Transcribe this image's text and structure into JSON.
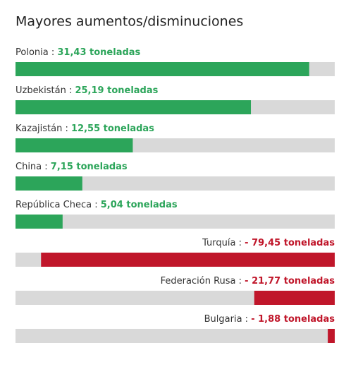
{
  "chart_data": {
    "type": "diverging-bar",
    "title": "Mayores aumentos/disminuciones",
    "categories": [
      "Polonia",
      "Uzbekistán",
      "Kazajistán",
      "China",
      "República Checa",
      "Turquía",
      "Federación Rusa",
      "Bulgaria"
    ],
    "values": [
      31.43,
      25.19,
      12.55,
      7.15,
      5.04,
      -79.45,
      -21.77,
      -1.88
    ],
    "value_labels": [
      "31,43 toneladas",
      "25,19 toneladas",
      "12,55 toneladas",
      "7,15 toneladas",
      "5,04 toneladas",
      "- 79,45 toneladas",
      "- 21,77 toneladas",
      "- 1,88 toneladas"
    ],
    "separator": " : ",
    "positive_color": "#2ca55a",
    "negative_color": "#c0162a",
    "track_color": "#d9d9d9"
  }
}
